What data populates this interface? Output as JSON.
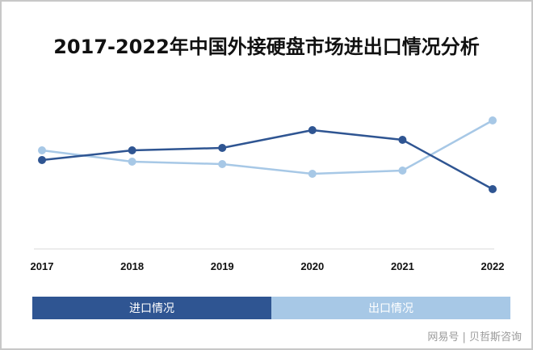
{
  "chart_data": {
    "type": "line",
    "title": "2017-2022年中国外接硬盘市场进出口情况分析",
    "categories": [
      "2017",
      "2018",
      "2019",
      "2020",
      "2021",
      "2022"
    ],
    "series": [
      {
        "name": "进口情况",
        "values": [
          112,
          124,
          127,
          149,
          137,
          76
        ],
        "color": "#2f5592"
      },
      {
        "name": "出口情况",
        "values": [
          124,
          110,
          107,
          95,
          99,
          161
        ],
        "color": "#a7c8e6"
      }
    ],
    "ylim": [
      0,
      260
    ],
    "grid": false,
    "y_axis_shown": false,
    "legend_placement": "bottom"
  },
  "watermark": "网易号 | 贝哲斯咨询"
}
